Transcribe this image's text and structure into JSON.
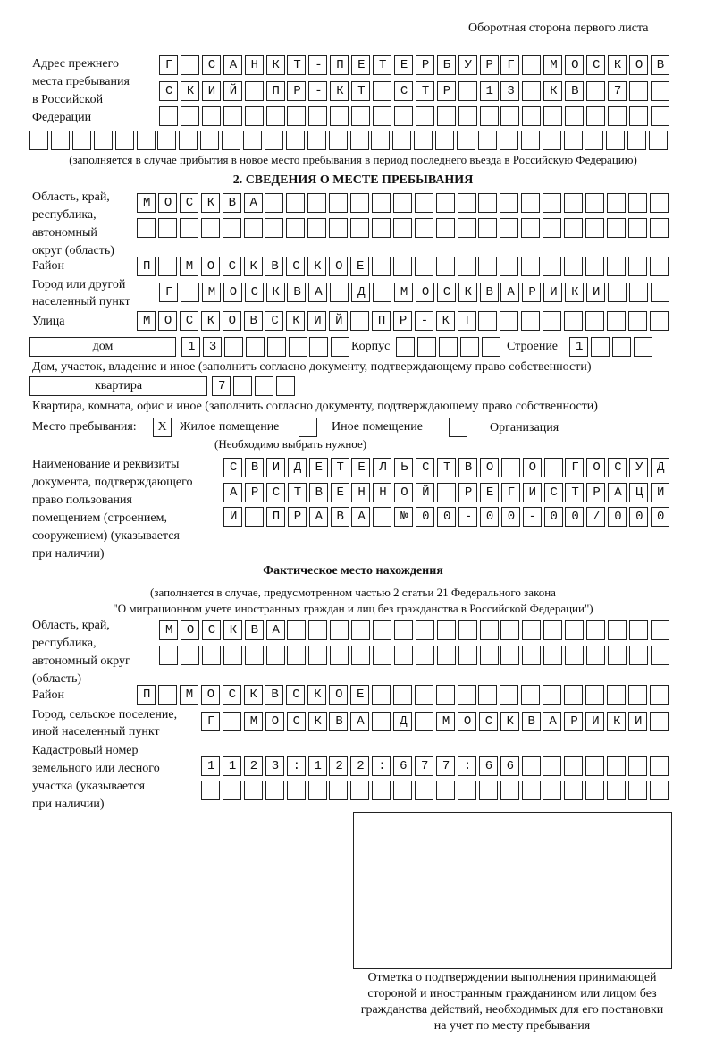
{
  "header": "Оборотная сторона первого листа",
  "prev_address": {
    "label": [
      "Адрес прежнего",
      "места пребывания",
      "в Российской",
      "Федерации"
    ],
    "rows": [
      "Г САНКТ-ПЕТЕРБУРГ МОСКОВ",
      "СКИЙ ПР-КТ СТР 13 КВ 7",
      "",
      ""
    ],
    "note": "(заполняется в случае прибытия в новое место пребывания в период последнего въезда в Российскую Федерацию)"
  },
  "section2": {
    "title": "2. СВЕДЕНИЯ О МЕСТЕ ПРЕБЫВАНИЯ",
    "region_label": [
      "Область, край,",
      "республика,",
      "автономный",
      "округ (область)"
    ],
    "region_rows": [
      "МОСКВА",
      ""
    ],
    "district_label": "Район",
    "district": "П МОСКВСКОЕ",
    "city_label": [
      "Город или другой",
      "населенный пункт"
    ],
    "city": "Г МОСКВА Д МОСКВАРИКИ",
    "street_label": "Улица",
    "street": "МОСКОВСКИЙ ПР-КТ",
    "house_type": "дом",
    "house": "13",
    "korpus_label": "Корпус",
    "korpus": "",
    "building_label": "Строение",
    "building": "1",
    "house_note": "Дом, участок, владение и иное (заполнить согласно документу, подтверждающему право собственности)",
    "flat_type": "квартира",
    "flat": "7",
    "flat_note": "Квартира, комната, офис и иное (заполнить согласно документу, подтверждающему право собственности)",
    "stay_label": "Место пребывания:",
    "options": [
      {
        "label": "Жилое помещение",
        "mark": "X"
      },
      {
        "label": "Иное помещение",
        "mark": ""
      },
      {
        "label": "Организация",
        "mark": ""
      }
    ],
    "choose_note": "(Необходимо выбрать нужное)",
    "doc_label": [
      "Наименование и реквизиты",
      "документа, подтверждающего",
      "право пользования",
      "помещением (строением,",
      "сооружением) (указывается",
      "при наличии)"
    ],
    "doc_rows": [
      "СВИДЕТЕЛЬСТВО О ГОСУД",
      "АРСТВЕННОЙ РЕГИСТРАЦИ",
      "И ПРАВА №00-00-00/000"
    ]
  },
  "actual": {
    "title": "Фактическое место нахождения",
    "note": [
      "(заполняется в случае, предусмотренном частью 2 статьи 21 Федерального закона",
      "\"О миграционном учете иностранных граждан и лиц без гражданства в Российской Федерации\")"
    ],
    "region_label": [
      "Область, край,",
      "республика,",
      "автономный округ",
      "(область)"
    ],
    "region_rows": [
      "МОСКВА",
      ""
    ],
    "district_label": "Район",
    "district": "П МОСКВСКОЕ",
    "city_label": [
      "Город, сельское поселение,",
      "иной населенный пункт"
    ],
    "city": "Г МОСКВА Д МОСКВАРИКИ",
    "cadastre_label": [
      "Кадастровый номер",
      "земельного или лесного",
      "участка (указывается",
      "при наличии)"
    ],
    "cadastre_rows": [
      "1123:122:677:66",
      ""
    ]
  },
  "stamp_caption": [
    "Отметка о подтверждении выполнения принимающей",
    "стороной и иностранным гражданином или лицом без",
    "гражданства действий, необходимых для его постановки",
    "на учет по месту пребывания"
  ]
}
